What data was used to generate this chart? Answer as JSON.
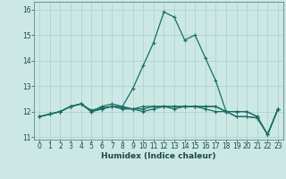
{
  "title": "",
  "xlabel": "Humidex (Indice chaleur)",
  "ylabel": "",
  "background_color": "#cce8e5",
  "grid_color": "#aacfcc",
  "line_color": "#1a6e64",
  "x_values": [
    0,
    1,
    2,
    3,
    4,
    5,
    6,
    7,
    8,
    9,
    10,
    11,
    12,
    13,
    14,
    15,
    16,
    17,
    18,
    19,
    20,
    21,
    22,
    23
  ],
  "series": [
    [
      11.8,
      11.9,
      12.0,
      12.2,
      12.3,
      12.0,
      12.1,
      12.2,
      12.1,
      12.1,
      12.0,
      12.1,
      12.2,
      12.2,
      12.2,
      12.2,
      12.2,
      12.2,
      12.0,
      11.8,
      11.8,
      11.75,
      11.1,
      12.1
    ],
    [
      11.8,
      11.9,
      12.0,
      12.2,
      12.3,
      12.0,
      12.2,
      12.3,
      12.2,
      12.9,
      13.8,
      14.7,
      15.9,
      15.7,
      14.8,
      15.0,
      14.1,
      13.2,
      12.0,
      12.0,
      12.0,
      11.8,
      11.1,
      12.1
    ],
    [
      11.8,
      11.9,
      12.0,
      12.2,
      12.3,
      12.05,
      12.15,
      12.2,
      12.15,
      12.1,
      12.1,
      12.2,
      12.2,
      12.1,
      12.2,
      12.2,
      12.2,
      12.2,
      12.0,
      11.8,
      11.8,
      11.75,
      11.1,
      12.1
    ],
    [
      11.8,
      11.9,
      12.0,
      12.2,
      12.3,
      12.0,
      12.1,
      12.2,
      12.2,
      12.1,
      12.2,
      12.2,
      12.2,
      12.2,
      12.2,
      12.2,
      12.1,
      12.0,
      12.0,
      12.0,
      12.0,
      11.8,
      11.1,
      12.1
    ]
  ],
  "ylim": [
    10.9,
    16.3
  ],
  "yticks": [
    11,
    12,
    13,
    14,
    15,
    16
  ],
  "xlim": [
    -0.5,
    23.5
  ],
  "xticks": [
    0,
    1,
    2,
    3,
    4,
    5,
    6,
    7,
    8,
    9,
    10,
    11,
    12,
    13,
    14,
    15,
    16,
    17,
    18,
    19,
    20,
    21,
    22,
    23
  ],
  "tick_fontsize": 5.5,
  "xlabel_fontsize": 6.5
}
